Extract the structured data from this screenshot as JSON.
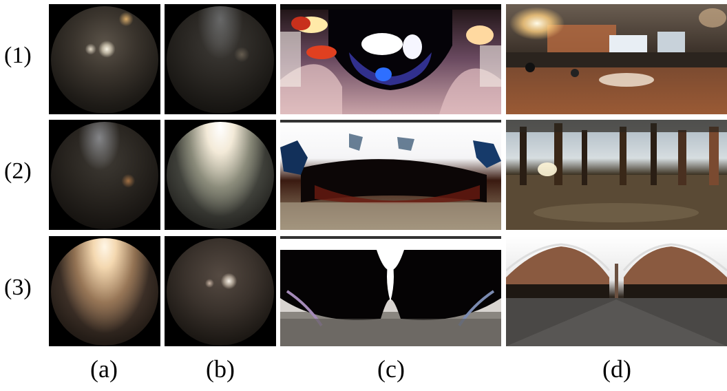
{
  "figure": {
    "row_labels": [
      "(1)",
      "(2)",
      "(3)"
    ],
    "column_labels": [
      "(a)",
      "(b)",
      "(c)",
      "(d)"
    ]
  }
}
